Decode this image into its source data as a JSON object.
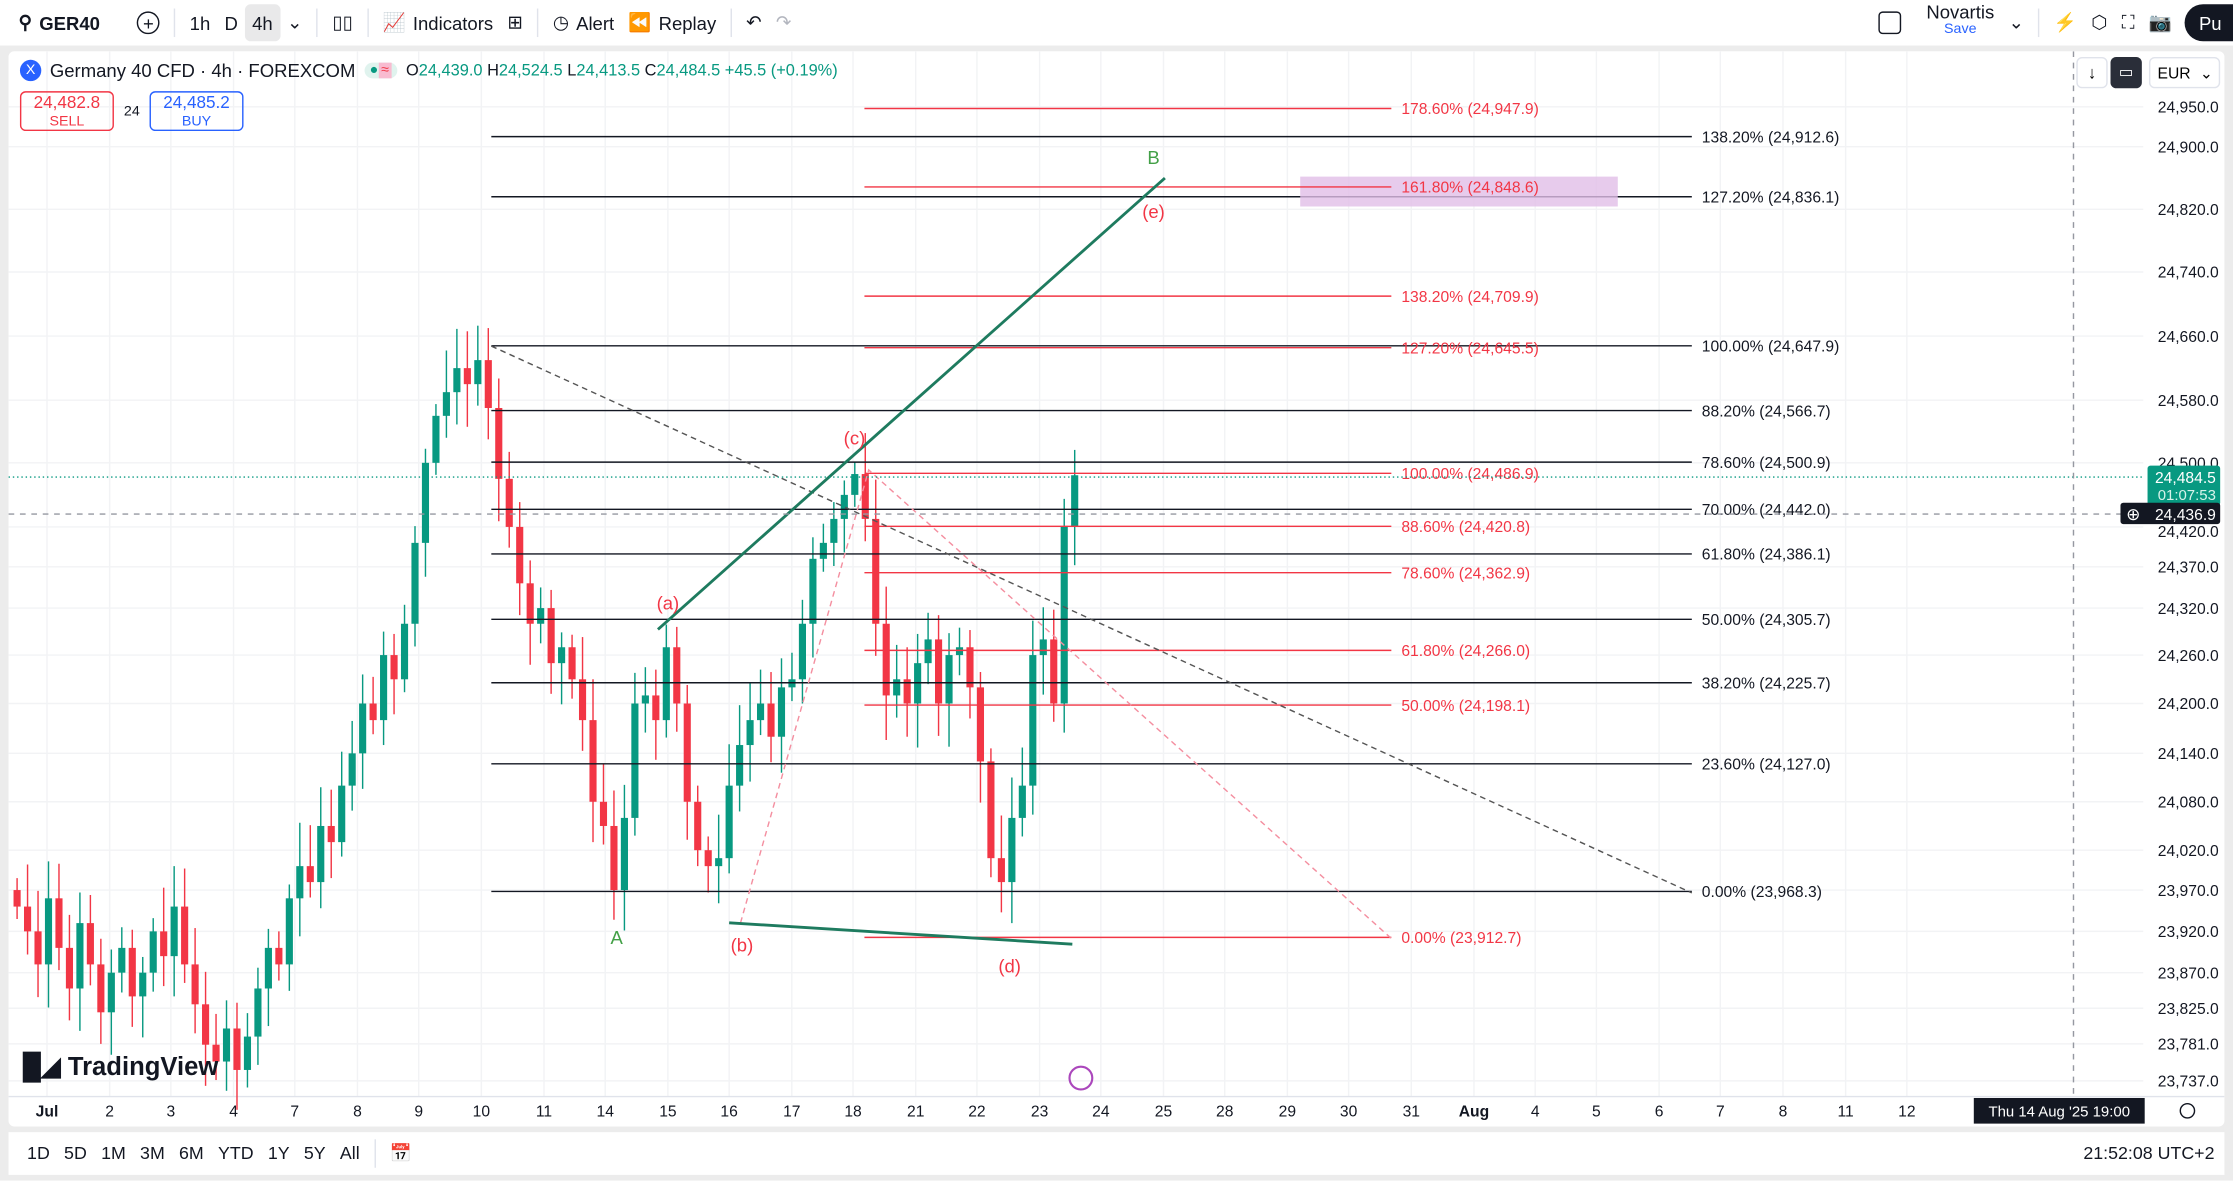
{
  "toolbar": {
    "symbol": "GER40",
    "intervals": [
      "1h",
      "D",
      "4h"
    ],
    "selected_interval": "4h",
    "indicators": "Indicators",
    "alert": "Alert",
    "replay": "Replay",
    "layout_name": "Novartis",
    "save": "Save",
    "publish": "Pu"
  },
  "legend": {
    "title": "Germany 40 CFD · 4h · FOREXCOM",
    "o_label": "O",
    "o": "24,439.0",
    "h_label": "H",
    "h": "24,524.5",
    "l_label": "L",
    "l": "24,413.5",
    "c_label": "C",
    "c": "24,484.5",
    "change": "+45.5 (+0.19%)",
    "sell_price": "24,482.8",
    "sell": "SELL",
    "spread": "24",
    "buy_price": "24,485.2",
    "buy": "BUY"
  },
  "currency": "EUR",
  "price_axis": {
    "ticks": [
      "24,950.0",
      "24,900.0",
      "24,820.0",
      "24,740.0",
      "24,660.0",
      "24,580.0",
      "24,500.0",
      "24,420.0",
      "24,370.0",
      "24,320.0",
      "24,260.0",
      "24,200.0",
      "24,140.0",
      "24,080.0",
      "24,020.0",
      "23,970.0",
      "23,920.0",
      "23,870.0",
      "23,825.0",
      "23,781.0",
      "23,737.0"
    ],
    "last_price": "24,484.5",
    "countdown": "01:07:53",
    "crosshair_price": "24,436.9"
  },
  "time_axis": {
    "labels": [
      "Jul",
      "2",
      "3",
      "4",
      "7",
      "8",
      "9",
      "10",
      "11",
      "14",
      "15",
      "16",
      "17",
      "18",
      "21",
      "22",
      "23",
      "24",
      "25",
      "28",
      "29",
      "30",
      "31",
      "Aug",
      "4",
      "5",
      "6",
      "7",
      "8",
      "11",
      "12"
    ],
    "crosshair": "Thu 14 Aug '25  19:00"
  },
  "fib_black": [
    {
      "label": "138.20% (24,912.6)",
      "price": 24912.6
    },
    {
      "label": "127.20% (24,836.1)",
      "price": 24836.1
    },
    {
      "label": "100.00% (24,647.9)",
      "price": 24647.9
    },
    {
      "label": "88.20% (24,566.7)",
      "price": 24566.7
    },
    {
      "label": "78.60% (24,500.9)",
      "price": 24500.9
    },
    {
      "label": "70.00% (24,442.0)",
      "price": 24442.0
    },
    {
      "label": "61.80% (24,386.1)",
      "price": 24386.1
    },
    {
      "label": "50.00% (24,305.7)",
      "price": 24305.7
    },
    {
      "label": "38.20% (24,225.7)",
      "price": 24225.7
    },
    {
      "label": "23.60% (24,127.0)",
      "price": 24127.0
    },
    {
      "label": "0.00% (23,968.3)",
      "price": 23968.3
    }
  ],
  "fib_red": [
    {
      "label": "178.60% (24,947.9)",
      "price": 24947.9
    },
    {
      "label": "161.80% (24,848.6)",
      "price": 24848.6
    },
    {
      "label": "138.20% (24,709.9)",
      "price": 24709.9
    },
    {
      "label": "127.20% (24,645.5)",
      "price": 24645.5
    },
    {
      "label": "100.00% (24,486.9)",
      "price": 24486.9
    },
    {
      "label": "88.60% (24,420.8)",
      "price": 24420.8
    },
    {
      "label": "78.60% (24,362.9)",
      "price": 24362.9
    },
    {
      "label": "61.80% (24,266.0)",
      "price": 24266.0
    },
    {
      "label": "50.00% (24,198.1)",
      "price": 24198.1
    },
    {
      "label": "0.00% (23,912.7)",
      "price": 23912.7
    }
  ],
  "wave_labels": {
    "A": "A",
    "B": "B",
    "a": "(a)",
    "b": "(b)",
    "c": "(c)",
    "d": "(d)",
    "e": "(e)"
  },
  "colors": {
    "up": "#089981",
    "down": "#f23645",
    "fib_red": "#f23645",
    "wave_green": "#1e7b5f",
    "highlight": "#e1bee7"
  },
  "watermark": "TradingView",
  "ranges": [
    "1D",
    "5D",
    "1M",
    "3M",
    "6M",
    "YTD",
    "1Y",
    "5Y",
    "All"
  ],
  "clock": "21:52:08 UTC+2",
  "chart_data": {
    "type": "candlestick",
    "closes": [
      23950,
      23920,
      23880,
      23960,
      23900,
      23850,
      23930,
      23880,
      23820,
      23870,
      23900,
      23840,
      23870,
      23920,
      23890,
      23950,
      23880,
      23830,
      23780,
      23760,
      23800,
      23750,
      23790,
      23850,
      23900,
      23880,
      23960,
      24000,
      23980,
      24050,
      24030,
      24100,
      24140,
      24200,
      24180,
      24260,
      24230,
      24300,
      24400,
      24500,
      24560,
      24590,
      24620,
      24600,
      24630,
      24570,
      24480,
      24420,
      24350,
      24300,
      24320,
      24250,
      24270,
      24230,
      24180,
      24080,
      24050,
      23970,
      24060,
      24200,
      24210,
      24180,
      24270,
      24200,
      24080,
      24020,
      24000,
      24010,
      24100,
      24150,
      24180,
      24200,
      24160,
      24220,
      24230,
      24300,
      24380,
      24400,
      24430,
      24460,
      24486,
      24430,
      24300,
      24210,
      24230,
      24200,
      24250,
      24280,
      24200,
      24260,
      24270,
      24220,
      24130,
      24010,
      23980,
      24060,
      24100,
      24260,
      24280,
      24200,
      24420,
      24484.5
    ]
  }
}
